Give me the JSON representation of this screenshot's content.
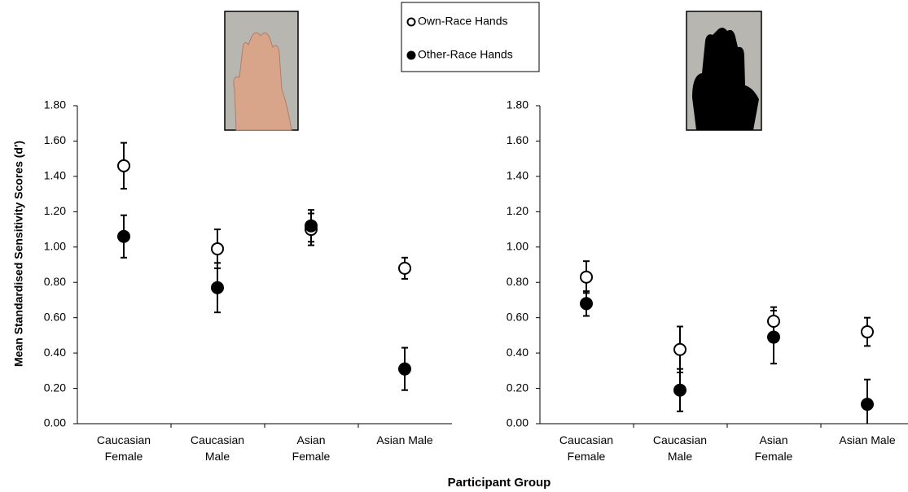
{
  "y_label": "Mean Standardised Sensitivity Scores (d′)",
  "x_label": "Participant Group",
  "chart_data": [
    {
      "type": "scatter",
      "categories": [
        "Caucasian Female",
        "Caucasian Male",
        "Asian Female",
        "Asian Male"
      ],
      "ylim": [
        0,
        1.8
      ],
      "yticks": [
        {
          "value": 0,
          "label": "0.00"
        },
        {
          "value": 0.2,
          "label": "0.20"
        },
        {
          "value": 0.4,
          "label": "0.40"
        },
        {
          "value": 0.6,
          "label": "0.60"
        },
        {
          "value": 0.8,
          "label": "0.80"
        },
        {
          "value": 1.0,
          "label": "1.00"
        },
        {
          "value": 1.2,
          "label": "1.20"
        },
        {
          "value": 1.4,
          "label": "1.40"
        },
        {
          "value": 1.6,
          "label": "1.60"
        },
        {
          "value": 1.8,
          "label": "1.80"
        }
      ],
      "series": [
        {
          "name": "Own-Race Hands",
          "color": "#ffffff",
          "values": [
            1.46,
            0.99,
            1.1,
            0.88
          ],
          "errors": [
            0.13,
            0.11,
            0.09,
            0.06
          ]
        },
        {
          "name": "Other-Race Hands",
          "color": "#000000",
          "values": [
            1.06,
            0.77,
            1.12,
            0.31
          ],
          "errors": [
            0.12,
            0.14,
            0.09,
            0.12
          ]
        }
      ]
    },
    {
      "type": "scatter",
      "categories": [
        "Caucasian Female",
        "Caucasian Male",
        "Asian Female",
        "Asian Male"
      ],
      "ylim": [
        0,
        1.8
      ],
      "yticks": [
        {
          "value": 0,
          "label": "0.00"
        },
        {
          "value": 0.2,
          "label": "0.20"
        },
        {
          "value": 0.4,
          "label": "0.40"
        },
        {
          "value": 0.6,
          "label": "0.60"
        },
        {
          "value": 0.8,
          "label": "0.80"
        },
        {
          "value": 1.0,
          "label": "1.00"
        },
        {
          "value": 1.2,
          "label": "1.20"
        },
        {
          "value": 1.4,
          "label": "1.40"
        },
        {
          "value": 1.6,
          "label": "1.60"
        },
        {
          "value": 1.8,
          "label": "1.80"
        }
      ],
      "series": [
        {
          "name": "Own-Race Hands",
          "color": "#ffffff",
          "values": [
            0.83,
            0.42,
            0.58,
            0.52
          ],
          "errors": [
            0.09,
            0.13,
            0.08,
            0.08
          ]
        },
        {
          "name": "Other-Race Hands",
          "color": "#000000",
          "values": [
            0.68,
            0.19,
            0.49,
            0.11
          ],
          "errors": [
            0.07,
            0.12,
            0.15,
            0.14
          ]
        }
      ]
    }
  ]
}
